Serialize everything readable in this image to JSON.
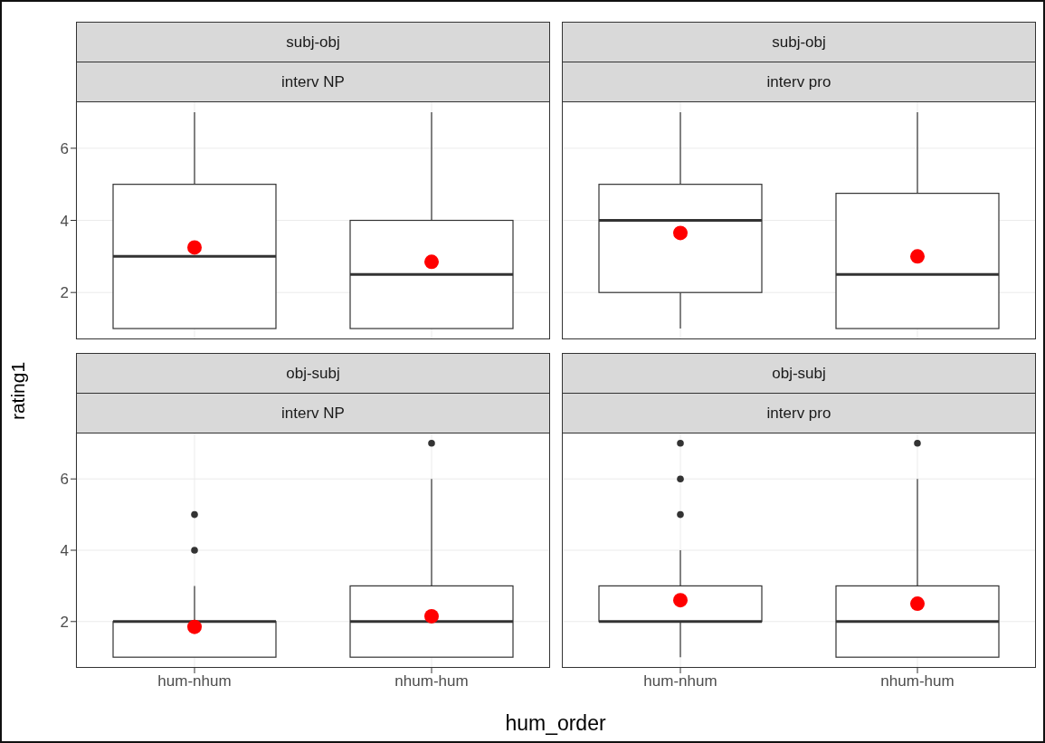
{
  "chart_data": [
    {
      "type": "box",
      "title": "subj-obj",
      "subtitle": "interv NP",
      "ylabel": "rating1",
      "categories": [
        "hum-nhum",
        "nhum-hum"
      ],
      "boxes": [
        {
          "low": 1,
          "q1": 1,
          "median": 3,
          "q3": 5,
          "high": 7
        },
        {
          "low": 1,
          "q1": 1,
          "median": 2.5,
          "q3": 4,
          "high": 7
        }
      ],
      "series": [
        {
          "type": "scatter",
          "x": [
            "hum-nhum",
            "nhum-hum"
          ],
          "values": [
            3.25,
            2.85
          ],
          "color": "#ff0000"
        }
      ],
      "ylim": [
        0.7,
        7.3
      ],
      "yticks": [
        2,
        4,
        6
      ],
      "grid": true,
      "tick_labels": "y"
    },
    {
      "type": "box",
      "title": "subj-obj",
      "subtitle": "interv pro",
      "categories": [
        "hum-nhum",
        "nhum-hum"
      ],
      "boxes": [
        {
          "low": 1,
          "q1": 2,
          "median": 4,
          "q3": 5,
          "high": 7
        },
        {
          "low": 1,
          "q1": 1,
          "median": 2.5,
          "q3": 4.75,
          "high": 7
        }
      ],
      "series": [
        {
          "type": "scatter",
          "x": [
            "hum-nhum",
            "nhum-hum"
          ],
          "values": [
            3.65,
            3.0
          ],
          "color": "#ff0000"
        }
      ],
      "ylim": [
        0.7,
        7.3
      ],
      "yticks": [
        2,
        4,
        6
      ],
      "grid": true,
      "tick_labels": false
    },
    {
      "type": "box",
      "title": "obj-subj",
      "subtitle": "interv NP",
      "xlabel": "hum_order",
      "categories": [
        "hum-nhum",
        "nhum-hum"
      ],
      "boxes": [
        {
          "low": 1,
          "q1": 1,
          "median": 2,
          "q3": 2,
          "high": 3,
          "outliers": [
            4,
            5
          ]
        },
        {
          "low": 1,
          "q1": 1,
          "median": 2,
          "q3": 3,
          "high": 6,
          "outliers": [
            7
          ]
        }
      ],
      "series": [
        {
          "type": "scatter",
          "x": [
            "hum-nhum",
            "nhum-hum"
          ],
          "values": [
            1.85,
            2.15
          ],
          "color": "#ff0000"
        }
      ],
      "ylim": [
        0.7,
        7.3
      ],
      "yticks": [
        2,
        4,
        6
      ],
      "grid": true
    },
    {
      "type": "box",
      "title": "obj-subj",
      "subtitle": "interv pro",
      "categories": [
        "hum-nhum",
        "nhum-hum"
      ],
      "boxes": [
        {
          "low": 1,
          "q1": 2,
          "median": 2,
          "q3": 3,
          "high": 4,
          "outliers": [
            5,
            6,
            7
          ]
        },
        {
          "low": 1,
          "q1": 1,
          "median": 2,
          "q3": 3,
          "high": 6,
          "outliers": [
            7
          ]
        }
      ],
      "series": [
        {
          "type": "scatter",
          "x": [
            "hum-nhum",
            "nhum-hum"
          ],
          "values": [
            2.6,
            2.5
          ],
          "color": "#ff0000"
        }
      ],
      "ylim": [
        0.7,
        7.3
      ],
      "yticks": [
        2,
        4,
        6
      ],
      "grid": true,
      "tick_labels": "x"
    }
  ]
}
